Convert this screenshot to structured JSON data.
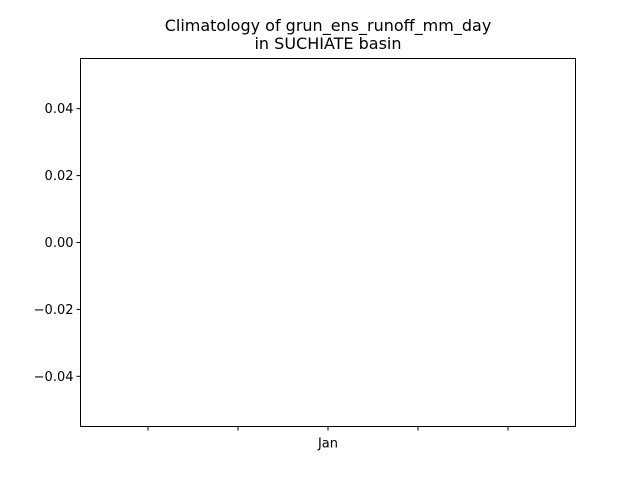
{
  "chart_data": {
    "type": "line",
    "title": [
      "Climatology of grun_ens_runoff_mm_day",
      "in SUCHIATE basin"
    ],
    "xlabel": "",
    "ylabel": "",
    "x_tick_labels": [
      "",
      "",
      "Jan",
      "",
      ""
    ],
    "y_ticks": [
      0.04,
      0.02,
      0.0,
      -0.02,
      -0.04
    ],
    "y_tick_labels": [
      "0.04",
      "0.02",
      "0.00",
      "−0.02",
      "−0.04"
    ],
    "ylim": [
      -0.055,
      0.055
    ],
    "series": [],
    "grid": false,
    "legend": "none"
  }
}
